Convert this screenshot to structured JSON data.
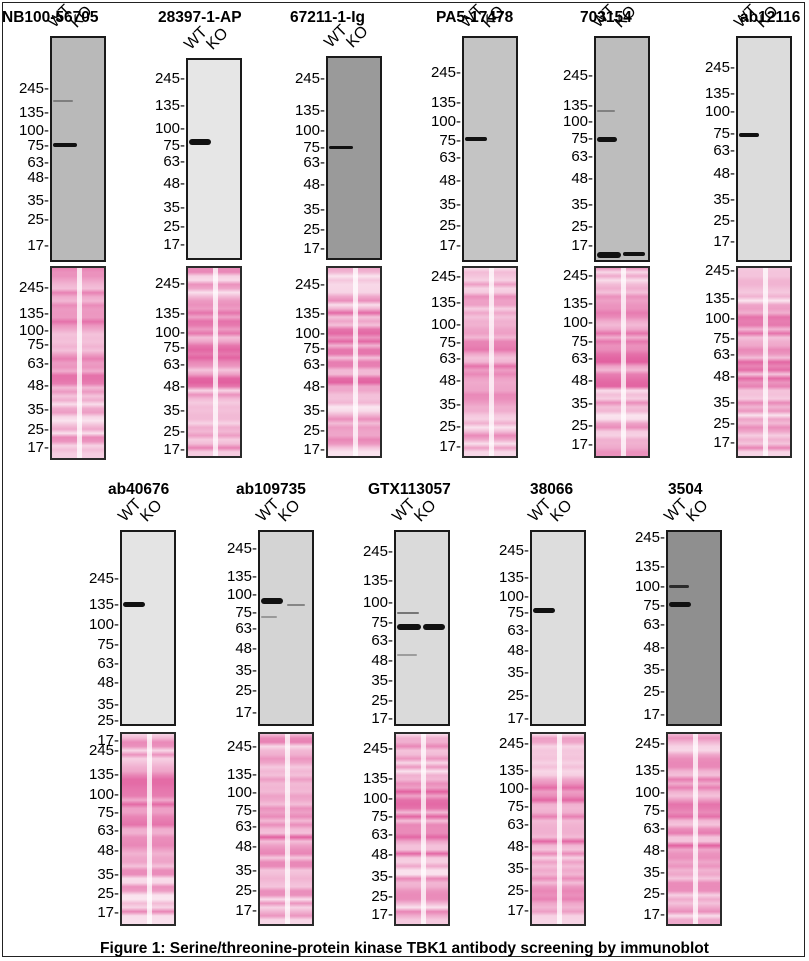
{
  "figure": {
    "caption": "Figure 1: Serine/threonine-protein kinase TBK1 antibody screening by immunoblot",
    "lane_labels": [
      "WT",
      "KO"
    ],
    "mw_markers": [
      "245",
      "135",
      "100",
      "75",
      "63",
      "48",
      "35",
      "25",
      "17"
    ],
    "colors": {
      "stain_pink": "#e0579a",
      "stain_light": "#f4dce9",
      "band": "#111111"
    },
    "panels": [
      {
        "antibody": "NB100-56705",
        "blot_background": "#b9b9b9"
      },
      {
        "antibody": "28397-1-AP",
        "blot_background": "#e6e6e6"
      },
      {
        "antibody": "67211-1-Ig",
        "blot_background": "#9a9a9a"
      },
      {
        "antibody": "PA5-17478",
        "blot_background": "#c4c4c4"
      },
      {
        "antibody": "703154",
        "blot_background": "#bdbdbd"
      },
      {
        "antibody": "ab12116",
        "blot_background": "#dcdcdc"
      },
      {
        "antibody": "ab40676",
        "blot_background": "#e4e4e4"
      },
      {
        "antibody": "ab109735",
        "blot_background": "#d4d4d4"
      },
      {
        "antibody": "GTX113057",
        "blot_background": "#dadada"
      },
      {
        "antibody": "38066",
        "blot_background": "#dddddd"
      },
      {
        "antibody": "3504",
        "blot_background": "#8f8f8f"
      }
    ]
  }
}
